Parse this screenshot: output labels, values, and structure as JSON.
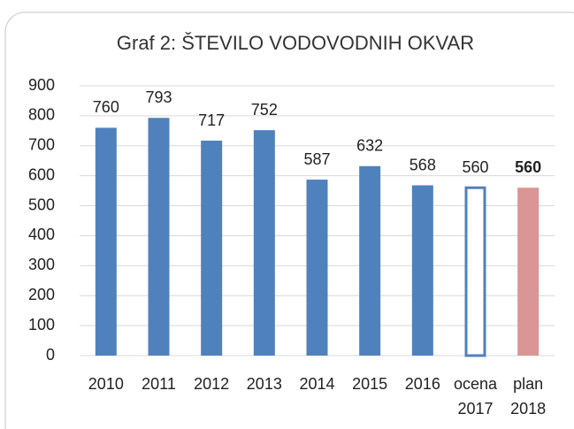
{
  "chart_data": {
    "type": "bar",
    "title": "Graf 2: ŠTEVILO VODOVODNIH OKVAR",
    "categories": [
      "2010",
      "2011",
      "2012",
      "2013",
      "2014",
      "2015",
      "2016",
      "ocena 2017",
      "plan 2018"
    ],
    "values": [
      760,
      793,
      717,
      752,
      587,
      632,
      568,
      560,
      560
    ],
    "colors": [
      "#4f81bd",
      "#4f81bd",
      "#4f81bd",
      "#4f81bd",
      "#4f81bd",
      "#4f81bd",
      "#4f81bd",
      "#4f81bd",
      "#d99694"
    ],
    "outline_only": [
      false,
      false,
      false,
      false,
      false,
      false,
      false,
      true,
      false
    ],
    "bold_labels": [
      false,
      false,
      false,
      false,
      false,
      false,
      false,
      false,
      true
    ],
    "ylim": [
      0,
      900
    ],
    "yticks": [
      0,
      100,
      200,
      300,
      400,
      500,
      600,
      700,
      800,
      900
    ],
    "grid": true
  }
}
